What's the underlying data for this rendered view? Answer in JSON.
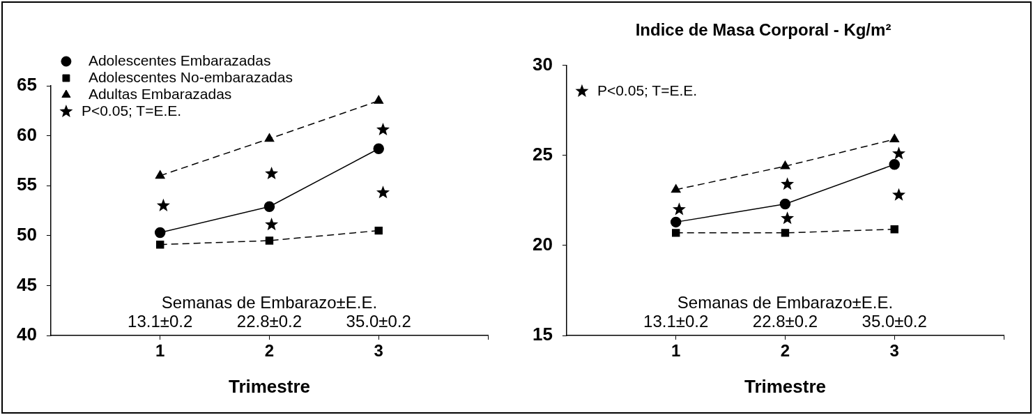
{
  "chart_data": [
    {
      "type": "line",
      "xlabel": "Trimestre",
      "x": [
        1,
        2,
        3
      ],
      "xlim": [
        0,
        4
      ],
      "xticks": [
        1,
        2,
        3,
        {
          "value": 4,
          "label": null
        }
      ],
      "ylim": [
        40,
        65
      ],
      "yticks": [
        40,
        45,
        50,
        55,
        60,
        65
      ],
      "grid": false,
      "legend": "top left",
      "series": [
        {
          "name": "Adolescentes Embarazadas",
          "color": "#000000",
          "marker": "circle",
          "line_style": "solid",
          "values": [
            50.3,
            52.9,
            58.7
          ]
        },
        {
          "name": "Adolescentes No-embarazadas",
          "color": "#000000",
          "marker": "square",
          "line_style": "dashed",
          "values": [
            49.1,
            49.5,
            50.5
          ]
        },
        {
          "name": "Adultas Embarazadas",
          "color": "#000000",
          "marker": "triangle",
          "line_style": "dashed",
          "values": [
            56.0,
            59.7,
            63.5
          ]
        },
        {
          "name": "P<0.05; T=E.E.",
          "type": "scatter",
          "color": "#000000",
          "marker": "star",
          "x": [
            1.03,
            2.02,
            2.02,
            3.04,
            3.04
          ],
          "values": [
            53.0,
            56.2,
            51.1,
            60.6,
            54.3
          ]
        }
      ],
      "annotations": [
        "Semanas de Embarazo±E.E.",
        "13.1±0.2",
        "22.8±0.2",
        "35.0±0.2"
      ]
    },
    {
      "type": "line",
      "title": "Indice de Masa Corporal - Kg/m²",
      "xlabel": "Trimestre",
      "x": [
        1,
        2,
        3
      ],
      "xlim": [
        0,
        4
      ],
      "xticks": [
        1,
        2,
        3,
        {
          "value": 4,
          "label": null
        }
      ],
      "ylim": [
        15,
        30
      ],
      "yticks": [
        15,
        20,
        25,
        30
      ],
      "grid": false,
      "legend": "top left",
      "series": [
        {
          "color": "#000000",
          "marker": "circle",
          "line_style": "solid",
          "values": [
            21.3,
            22.3,
            24.5
          ]
        },
        {
          "color": "#000000",
          "marker": "square",
          "line_style": "dashed",
          "values": [
            20.7,
            20.7,
            20.9
          ]
        },
        {
          "color": "#000000",
          "marker": "triangle",
          "line_style": "dashed",
          "values": [
            23.1,
            24.4,
            25.9
          ]
        },
        {
          "name": "P<0.05; T=E.E.",
          "type": "scatter",
          "color": "#000000",
          "marker": "star",
          "x": [
            1.03,
            2.02,
            2.02,
            3.04,
            3.04
          ],
          "values": [
            22.0,
            23.4,
            21.5,
            25.1,
            22.8
          ]
        }
      ],
      "annotations": [
        "Semanas de Embarazo±E.E.",
        "13.1±0.2",
        "22.8±0.2",
        "35.0±0.2"
      ]
    }
  ]
}
